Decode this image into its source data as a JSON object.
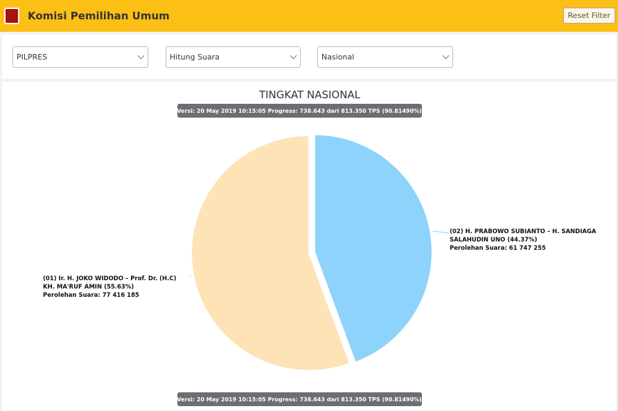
{
  "header": {
    "title": "Komisi Pemilihan Umum",
    "reset": "Reset Filter"
  },
  "filters": [
    "PILPRES",
    "Hitung Suara",
    "Nasional"
  ],
  "chart_data": {
    "type": "pie",
    "title": "TINGKAT NASIONAL",
    "subtitle": "Versi: 20 May 2019 10:15:05 Progress: 738.643 dari 813.350 TPS (90.81490%)",
    "categories": [
      [
        "(01) Ir. H. JOKO WIDODO – Prof. Dr. (H.C)",
        "KH. MA'RUF AMIN"
      ],
      [
        "(02) H. PRABOWO SUBIANTO – H. SANDIAGA",
        "SALAHUDIN UNO"
      ]
    ],
    "values": [
      55.63,
      44.37
    ],
    "value_labels": [
      "(55.63%)",
      "(44.37%)"
    ],
    "votes": [
      77416185,
      61747255
    ],
    "vote_labels": [
      "Perolehan Suara: 77 416 185",
      "Perolehan Suara: 61 747 255"
    ],
    "colors": [
      "#fde3b5",
      "#8dd3fb"
    ]
  }
}
